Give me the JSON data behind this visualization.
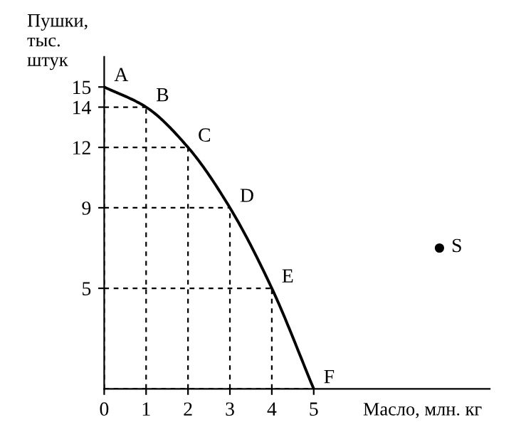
{
  "chart_data": {
    "type": "line",
    "xlabel": "Масло, млн. кг",
    "ylabel": "Пушки,\nтыс.\nштук",
    "x": [
      0,
      1,
      2,
      3,
      4,
      5
    ],
    "series": [
      {
        "color": "#000000",
        "marker": "none",
        "values": [
          15,
          14,
          12,
          9,
          5,
          0
        ]
      },
      {
        "type": "scatter",
        "name": "S",
        "color": "#000000",
        "marker": "circle",
        "x": [
          8
        ],
        "values": [
          7
        ]
      }
    ],
    "annotations": [
      {
        "text": "A",
        "x": 0,
        "y": 15
      },
      {
        "text": "B",
        "x": 1,
        "y": 14
      },
      {
        "text": "C",
        "x": 2,
        "y": 12
      },
      {
        "text": "D",
        "x": 3,
        "y": 9
      },
      {
        "text": "E",
        "x": 4,
        "y": 5
      },
      {
        "text": "F",
        "x": 5,
        "y": 0
      }
    ],
    "xlim": [
      0,
      9.2
    ],
    "ylim": [
      0,
      16.5
    ],
    "xticks": [
      0,
      1,
      2,
      3,
      4,
      5
    ],
    "yticks": [
      5,
      9,
      12,
      14,
      15
    ],
    "grid": true,
    "line_style": "solid"
  }
}
